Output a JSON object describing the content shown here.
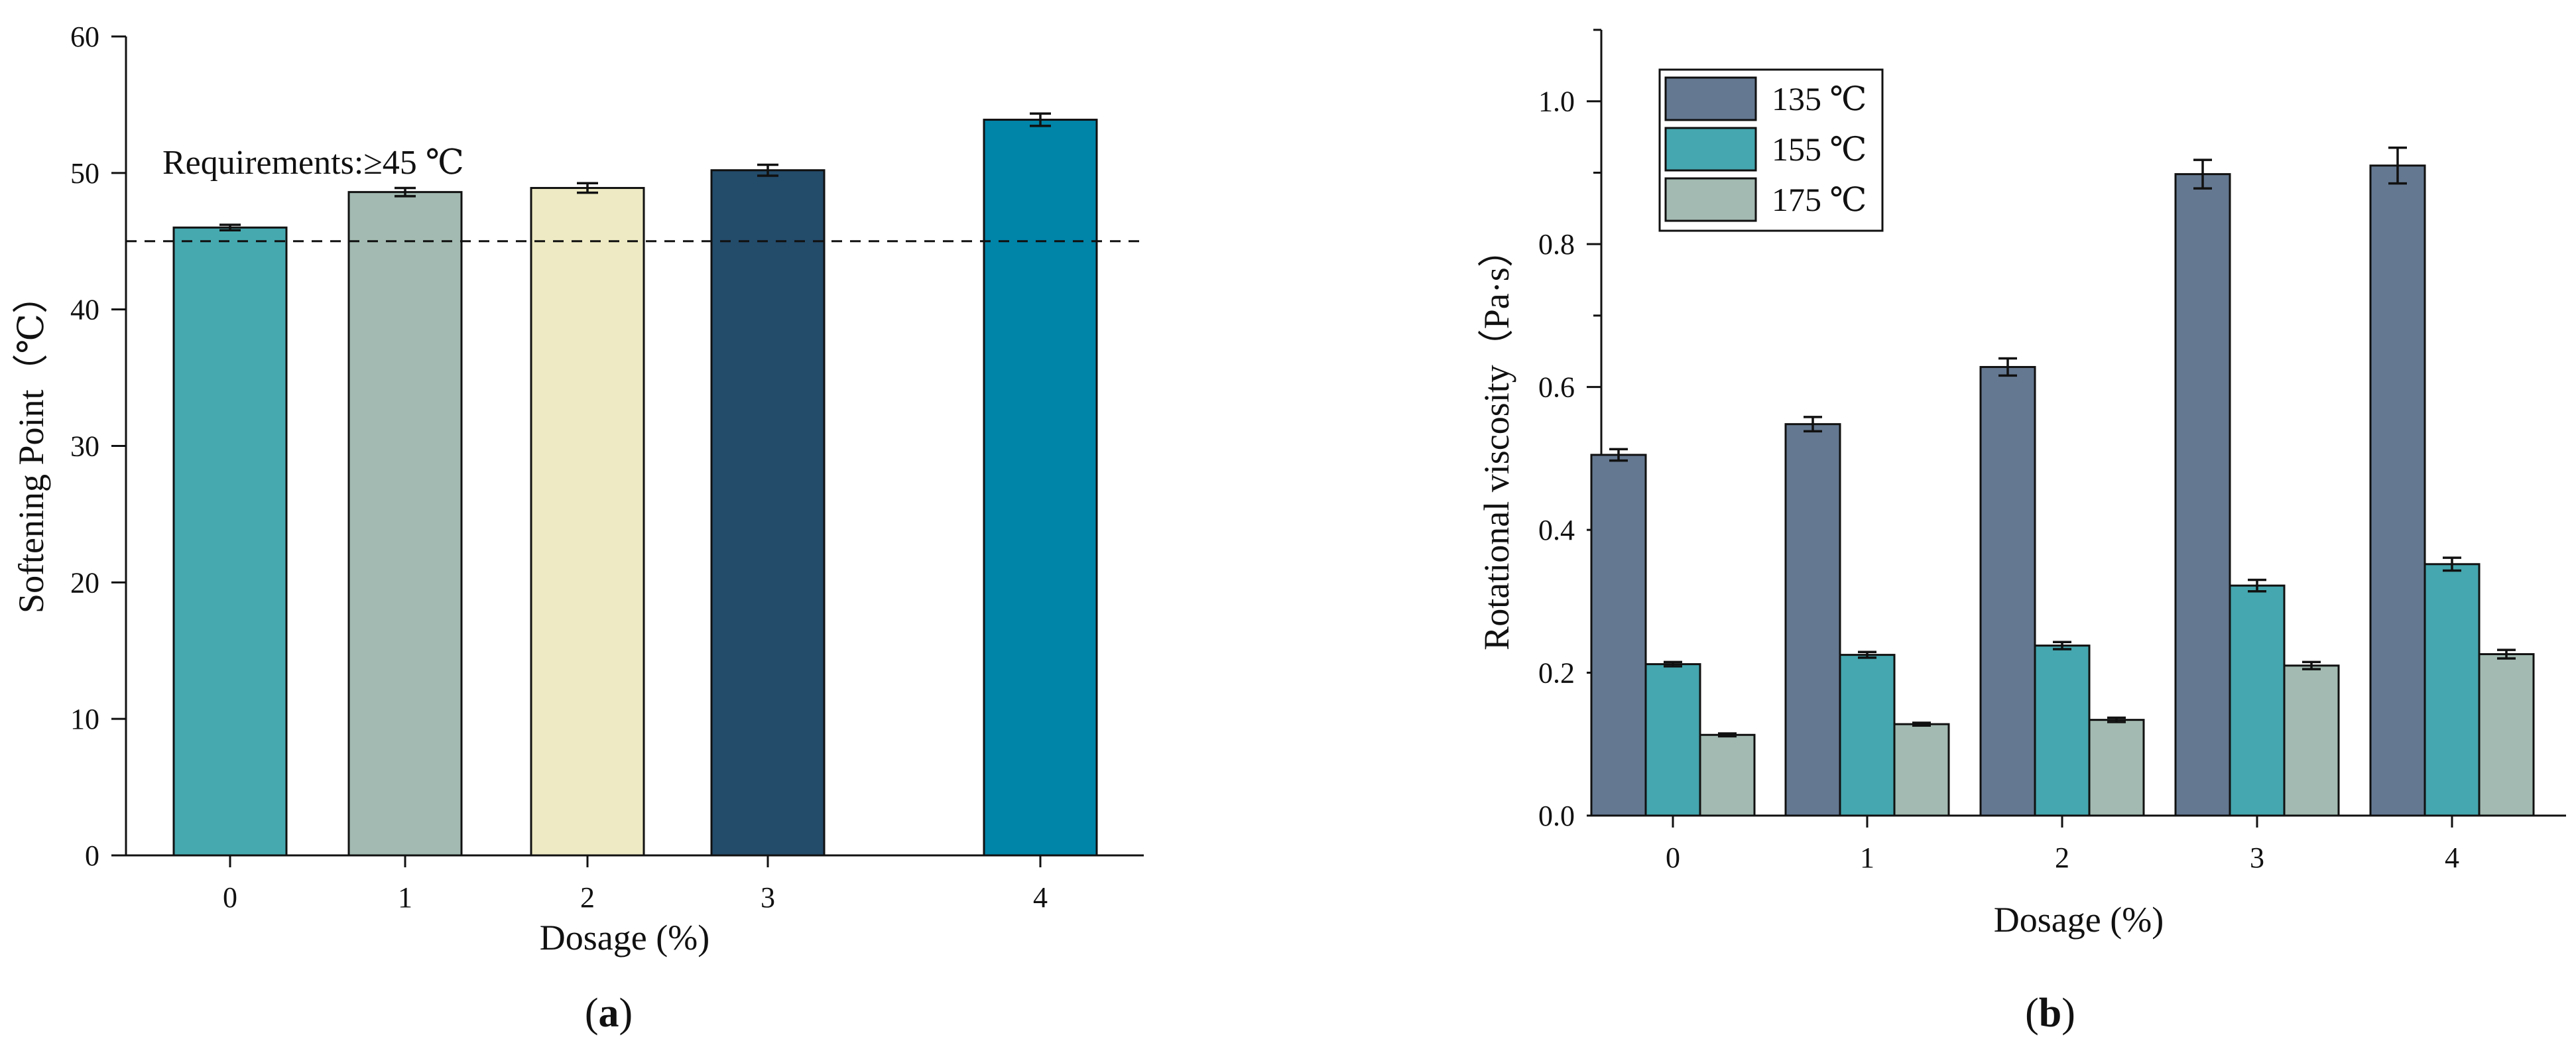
{
  "chart_data": [
    {
      "panel": "(a)",
      "panel_letter": "a",
      "type": "bar",
      "ylabel": "Softening Point（℃）",
      "xlabel": "Dosage (%)",
      "ylim": [
        0,
        60
      ],
      "yticks": [
        0,
        10,
        20,
        30,
        40,
        50,
        60
      ],
      "categories": [
        "0",
        "1",
        "2",
        "3",
        "4"
      ],
      "values": [
        46.0,
        48.6,
        48.9,
        50.2,
        53.9
      ],
      "errors": [
        0.2,
        0.3,
        0.35,
        0.4,
        0.45
      ],
      "colors": [
        "#46a9b0",
        "#a2bab1",
        "#eeeac3",
        "#234b6a",
        "#0084a8"
      ],
      "reference_line": {
        "value": 45,
        "style": "dashed"
      },
      "annotation": "Requirements:≥45 ℃"
    },
    {
      "panel": "(b)",
      "panel_letter": "b",
      "type": "bar",
      "ylabel": "Rotational viscosity（Pa·s）",
      "xlabel": "Dosage (%)",
      "ylim": [
        0,
        1.1
      ],
      "yticks": [
        "0.0",
        "0.2",
        "0.4",
        "0.6",
        "0.8",
        "1.0"
      ],
      "categories": [
        "0",
        "1",
        "2",
        "3",
        "4"
      ],
      "series": [
        {
          "name": "135 ℃",
          "color": "#647891",
          "values": [
            0.505,
            0.548,
            0.628,
            0.898,
            0.91
          ],
          "errors": [
            0.008,
            0.01,
            0.012,
            0.02,
            0.025
          ]
        },
        {
          "name": "155 ℃",
          "color": "#45a7af",
          "values": [
            0.212,
            0.225,
            0.238,
            0.322,
            0.352
          ],
          "errors": [
            0.003,
            0.004,
            0.005,
            0.008,
            0.009
          ]
        },
        {
          "name": "175 ℃",
          "color": "#a2bab1",
          "values": [
            0.113,
            0.128,
            0.134,
            0.21,
            0.226
          ],
          "errors": [
            0.002,
            0.002,
            0.003,
            0.005,
            0.006
          ]
        }
      ]
    }
  ]
}
